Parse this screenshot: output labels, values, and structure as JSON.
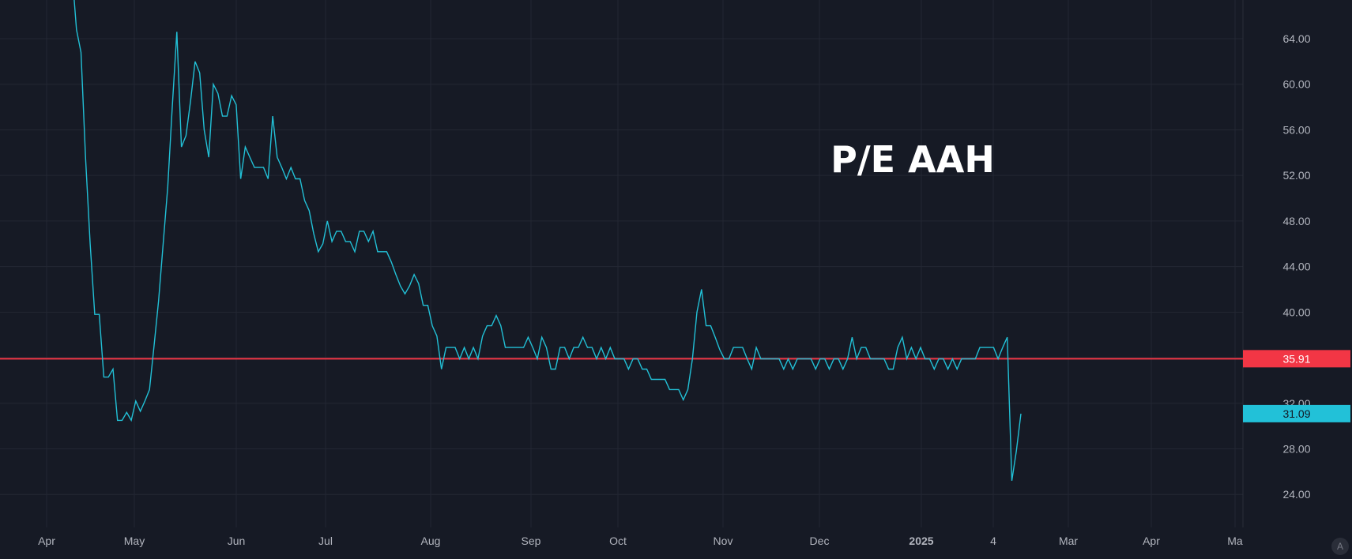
{
  "chart_data": {
    "type": "line",
    "title": "P/E AAH",
    "xlabel": "",
    "ylabel": "",
    "ylim": [
      20,
      68.5
    ],
    "grid": true,
    "x_tick_labels": [
      "Apr",
      "May",
      "Jun",
      "Jul",
      "Aug",
      "Sep",
      "Oct",
      "Nov",
      "Dec",
      "2025",
      "4",
      "Mar",
      "Apr",
      "Ma"
    ],
    "y_ticks": [
      "64.00",
      "60.00",
      "56.00",
      "52.00",
      "48.00",
      "44.00",
      "40.00",
      "32.00",
      "28.00",
      "24.00"
    ],
    "x_unit": "trading day index (daily series, Apr 2024 to Feb 2025)",
    "series": [
      {
        "name": "P/E AAH",
        "color": "#22c0d6",
        "values": [
          70,
          64.8,
          62.8,
          53.5,
          46,
          39.8,
          39.8,
          34.3,
          34.3,
          35,
          30.5,
          30.5,
          31.2,
          30.5,
          32.2,
          31.3,
          32.2,
          33.2,
          37,
          41,
          46,
          51,
          58,
          64.6,
          54.5,
          55.5,
          58.5,
          62,
          61,
          56,
          53.6,
          60,
          59.2,
          57.2,
          57.2,
          59,
          58.2,
          51.7,
          54.5,
          53.6,
          52.7,
          52.7,
          52.7,
          51.7,
          57.2,
          53.6,
          52.7,
          51.7,
          52.7,
          51.7,
          51.7,
          49.8,
          48.9,
          46.9,
          45.3,
          46,
          48,
          46.2,
          47.1,
          47.1,
          46.2,
          46.2,
          45.3,
          47.1,
          47.1,
          46.2,
          47.1,
          45.3,
          45.3,
          45.3,
          44.4,
          43.3,
          42.3,
          41.6,
          42.3,
          43.3,
          42.5,
          40.6,
          40.6,
          38.8,
          37.9,
          35,
          36.9,
          36.9,
          36.9,
          35.9,
          36.9,
          35.9,
          36.9,
          35.9,
          37.9,
          38.8,
          38.8,
          39.7,
          38.8,
          36.9,
          36.9,
          36.9,
          36.9,
          36.9,
          37.8,
          36.9,
          35.9,
          37.8,
          36.9,
          35,
          35,
          36.9,
          36.9,
          35.9,
          36.9,
          36.9,
          37.8,
          36.9,
          36.9,
          35.9,
          36.9,
          35.9,
          36.9,
          35.9,
          35.9,
          35.9,
          35,
          35.9,
          35.9,
          35,
          35,
          34.1,
          34.1,
          34.1,
          34.1,
          33.2,
          33.2,
          33.2,
          32.3,
          33.2,
          35.9,
          40,
          42,
          38.8,
          38.8,
          37.8,
          36.7,
          35.9,
          35.9,
          36.9,
          36.9,
          36.9,
          35.9,
          35,
          36.9,
          35.9,
          35.9,
          35.9,
          35.9,
          35.9,
          35,
          35.9,
          35,
          35.9,
          35.9,
          35.9,
          35.9,
          35,
          35.9,
          35.9,
          35,
          35.9,
          35.9,
          35,
          35.9,
          37.8,
          35.9,
          36.9,
          36.9,
          35.9,
          35.9,
          35.9,
          35.9,
          35,
          35,
          36.9,
          37.8,
          35.9,
          36.9,
          35.9,
          36.9,
          35.9,
          35.9,
          35,
          35.9,
          35.9,
          35,
          35.9,
          35,
          35.9,
          35.9,
          35.9,
          35.9,
          36.9,
          36.9,
          36.9,
          36.9,
          35.9,
          36.9,
          37.8,
          25.2,
          27.8,
          31.09
        ]
      }
    ],
    "reference_line": {
      "value": 35.91,
      "label": "35.91",
      "color": "#f23645"
    },
    "last_value": {
      "value": 31.09,
      "label": "31.09",
      "color": "#22c1d8"
    }
  },
  "controls": {
    "auto_scale_label": "A"
  }
}
